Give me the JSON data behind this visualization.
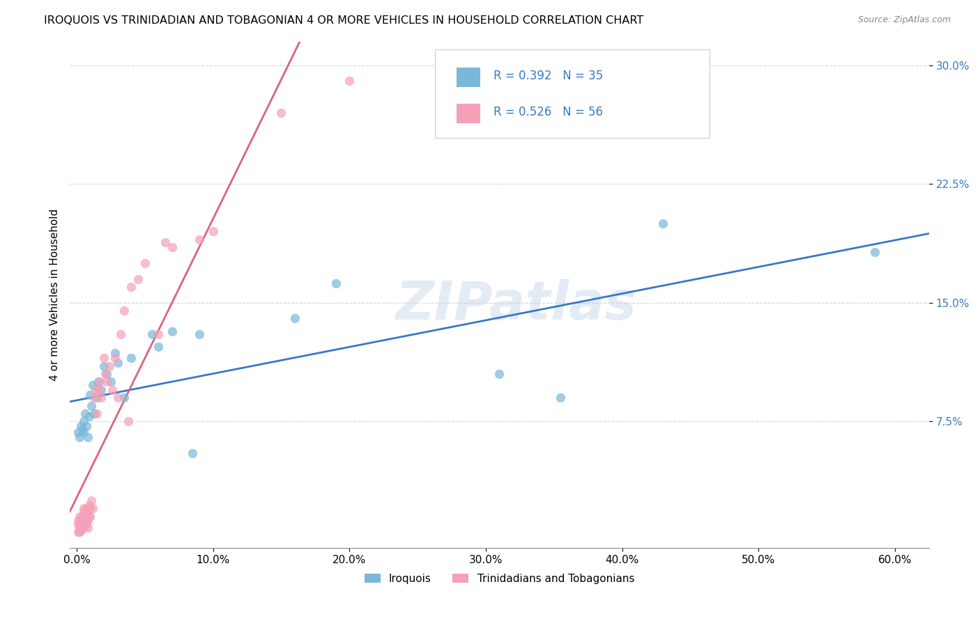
{
  "title": "IROQUOIS VS TRINIDADIAN AND TOBAGONIAN 4 OR MORE VEHICLES IN HOUSEHOLD CORRELATION CHART",
  "source": "Source: ZipAtlas.com",
  "xlabel_ticks": [
    "0.0%",
    "10.0%",
    "20.0%",
    "30.0%",
    "40.0%",
    "50.0%",
    "60.0%"
  ],
  "xlabel_vals": [
    0.0,
    0.1,
    0.2,
    0.3,
    0.4,
    0.5,
    0.6
  ],
  "ylabel": "4 or more Vehicles in Household",
  "ylabel_ticks": [
    "30.0%",
    "22.5%",
    "15.0%",
    "7.5%"
  ],
  "ylabel_vals": [
    0.3,
    0.225,
    0.15,
    0.075
  ],
  "xlim": [
    -0.005,
    0.625
  ],
  "ylim": [
    -0.005,
    0.315
  ],
  "legend_label1": "Iroquois",
  "legend_label2": "Trinidadians and Tobagonians",
  "R1": "0.392",
  "N1": "35",
  "R2": "0.526",
  "N2": "56",
  "color1": "#7ab8d9",
  "color2": "#f4a0b8",
  "trendline1_color": "#3878c8",
  "trendline2_color": "#e06080",
  "watermark_color": "#c8d8ec",
  "iroquois_x": [
    0.001,
    0.002,
    0.003,
    0.004,
    0.005,
    0.005,
    0.006,
    0.007,
    0.008,
    0.009,
    0.01,
    0.011,
    0.012,
    0.013,
    0.015,
    0.016,
    0.018,
    0.02,
    0.022,
    0.025,
    0.028,
    0.03,
    0.035,
    0.04,
    0.055,
    0.06,
    0.07,
    0.085,
    0.09,
    0.16,
    0.19,
    0.31,
    0.355,
    0.43,
    0.585
  ],
  "iroquois_y": [
    0.068,
    0.065,
    0.072,
    0.07,
    0.075,
    0.068,
    0.08,
    0.072,
    0.065,
    0.078,
    0.092,
    0.085,
    0.098,
    0.08,
    0.09,
    0.1,
    0.095,
    0.11,
    0.105,
    0.1,
    0.118,
    0.112,
    0.09,
    0.115,
    0.13,
    0.122,
    0.132,
    0.055,
    0.13,
    0.14,
    0.162,
    0.105,
    0.09,
    0.2,
    0.182
  ],
  "trini_x": [
    0.001,
    0.001,
    0.001,
    0.002,
    0.002,
    0.002,
    0.003,
    0.003,
    0.003,
    0.004,
    0.004,
    0.004,
    0.005,
    0.005,
    0.005,
    0.005,
    0.006,
    0.006,
    0.007,
    0.007,
    0.007,
    0.008,
    0.008,
    0.008,
    0.009,
    0.009,
    0.01,
    0.01,
    0.011,
    0.012,
    0.013,
    0.014,
    0.015,
    0.016,
    0.017,
    0.018,
    0.02,
    0.021,
    0.022,
    0.024,
    0.026,
    0.028,
    0.03,
    0.032,
    0.035,
    0.038,
    0.04,
    0.045,
    0.05,
    0.06,
    0.065,
    0.07,
    0.09,
    0.1,
    0.15,
    0.2
  ],
  "trini_y": [
    0.01,
    0.005,
    0.012,
    0.008,
    0.015,
    0.005,
    0.01,
    0.006,
    0.012,
    0.008,
    0.015,
    0.01,
    0.02,
    0.012,
    0.008,
    0.018,
    0.01,
    0.015,
    0.02,
    0.01,
    0.015,
    0.008,
    0.012,
    0.018,
    0.022,
    0.015,
    0.02,
    0.015,
    0.025,
    0.02,
    0.09,
    0.095,
    0.08,
    0.095,
    0.1,
    0.09,
    0.115,
    0.105,
    0.1,
    0.11,
    0.095,
    0.115,
    0.09,
    0.13,
    0.145,
    0.075,
    0.16,
    0.165,
    0.175,
    0.13,
    0.188,
    0.185,
    0.19,
    0.195,
    0.27,
    0.29
  ]
}
